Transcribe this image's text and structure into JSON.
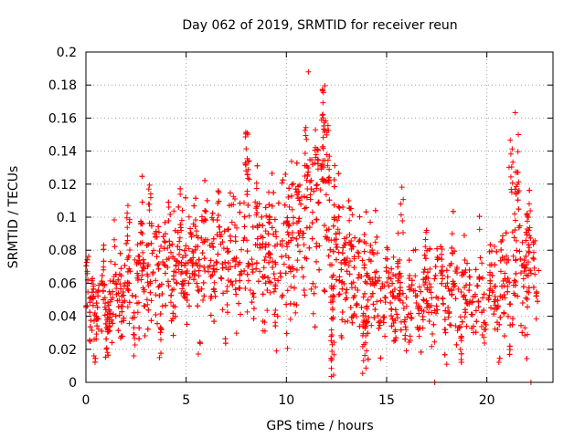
{
  "chart_data": {
    "type": "scatter",
    "title": "Day 062 of 2019, SRMTID for receiver reun",
    "xlabel": "GPS time / hours",
    "ylabel": "SRMTID / TECUs",
    "xlim": [
      0,
      23.3
    ],
    "ylim": [
      0,
      0.2
    ],
    "x_ticks": [
      0,
      5,
      10,
      15,
      20
    ],
    "x_tick_labels": [
      "0",
      "5",
      "10",
      "15",
      "20"
    ],
    "y_ticks": [
      0,
      0.02,
      0.04,
      0.06,
      0.08,
      0.1,
      0.12,
      0.14,
      0.16,
      0.18,
      0.2
    ],
    "y_tick_labels": [
      "0",
      "0.02",
      "0.04",
      "0.06",
      "0.08",
      "0.1",
      "0.12",
      "0.14",
      "0.16",
      "0.18",
      "0.2"
    ],
    "grid": true,
    "marker": "+",
    "color": "#ff0000",
    "point_count": 2600,
    "trend": [
      [
        0.0,
        0.045,
        0.012
      ],
      [
        1.0,
        0.048,
        0.012
      ],
      [
        2.0,
        0.058,
        0.014
      ],
      [
        3.0,
        0.064,
        0.016
      ],
      [
        4.0,
        0.068,
        0.016
      ],
      [
        5.0,
        0.072,
        0.016
      ],
      [
        6.0,
        0.075,
        0.018
      ],
      [
        7.0,
        0.073,
        0.017
      ],
      [
        8.0,
        0.078,
        0.02
      ],
      [
        9.0,
        0.08,
        0.02
      ],
      [
        10.0,
        0.082,
        0.022
      ],
      [
        11.0,
        0.1,
        0.025
      ],
      [
        11.8,
        0.105,
        0.03
      ],
      [
        12.5,
        0.082,
        0.02
      ],
      [
        13.0,
        0.07,
        0.018
      ],
      [
        14.0,
        0.062,
        0.016
      ],
      [
        15.0,
        0.055,
        0.014
      ],
      [
        16.0,
        0.052,
        0.013
      ],
      [
        17.0,
        0.058,
        0.014
      ],
      [
        18.0,
        0.054,
        0.013
      ],
      [
        19.0,
        0.05,
        0.013
      ],
      [
        20.0,
        0.052,
        0.013
      ],
      [
        21.0,
        0.058,
        0.016
      ],
      [
        21.5,
        0.075,
        0.025
      ],
      [
        22.0,
        0.068,
        0.02
      ],
      [
        22.6,
        0.062,
        0.015
      ]
    ],
    "clusters": [
      {
        "x": 8.05,
        "y0": 0.115,
        "y1": 0.152,
        "n": 18
      },
      {
        "x": 11.0,
        "y0": 0.12,
        "y1": 0.155,
        "n": 10
      },
      {
        "x": 11.5,
        "y0": 0.13,
        "y1": 0.162,
        "n": 12
      },
      {
        "x": 11.85,
        "y0": 0.13,
        "y1": 0.18,
        "n": 22
      },
      {
        "x": 12.05,
        "y0": 0.12,
        "y1": 0.163,
        "n": 14
      },
      {
        "x": 12.3,
        "y0": 0.0,
        "y1": 0.06,
        "n": 28
      },
      {
        "x": 13.9,
        "y0": 0.0,
        "y1": 0.05,
        "n": 24
      },
      {
        "x": 21.2,
        "y0": 0.11,
        "y1": 0.147,
        "n": 10
      },
      {
        "x": 21.5,
        "y0": 0.11,
        "y1": 0.165,
        "n": 12
      },
      {
        "x": 3.2,
        "y0": 0.09,
        "y1": 0.122,
        "n": 8
      },
      {
        "x": 2.1,
        "y0": 0.085,
        "y1": 0.115,
        "n": 6
      },
      {
        "x": 15.8,
        "y0": 0.09,
        "y1": 0.12,
        "n": 6
      },
      {
        "x": 22.1,
        "y0": 0.09,
        "y1": 0.12,
        "n": 6
      }
    ],
    "outliers": [
      {
        "x": 11.1,
        "y": 0.188
      },
      {
        "x": 17.4,
        "y": 0.0
      },
      {
        "x": 22.2,
        "y": 0.0
      },
      {
        "x": 18.0,
        "y": 0.011
      },
      {
        "x": 9.5,
        "y": 0.019
      },
      {
        "x": 0.4,
        "y": 0.016
      }
    ]
  }
}
